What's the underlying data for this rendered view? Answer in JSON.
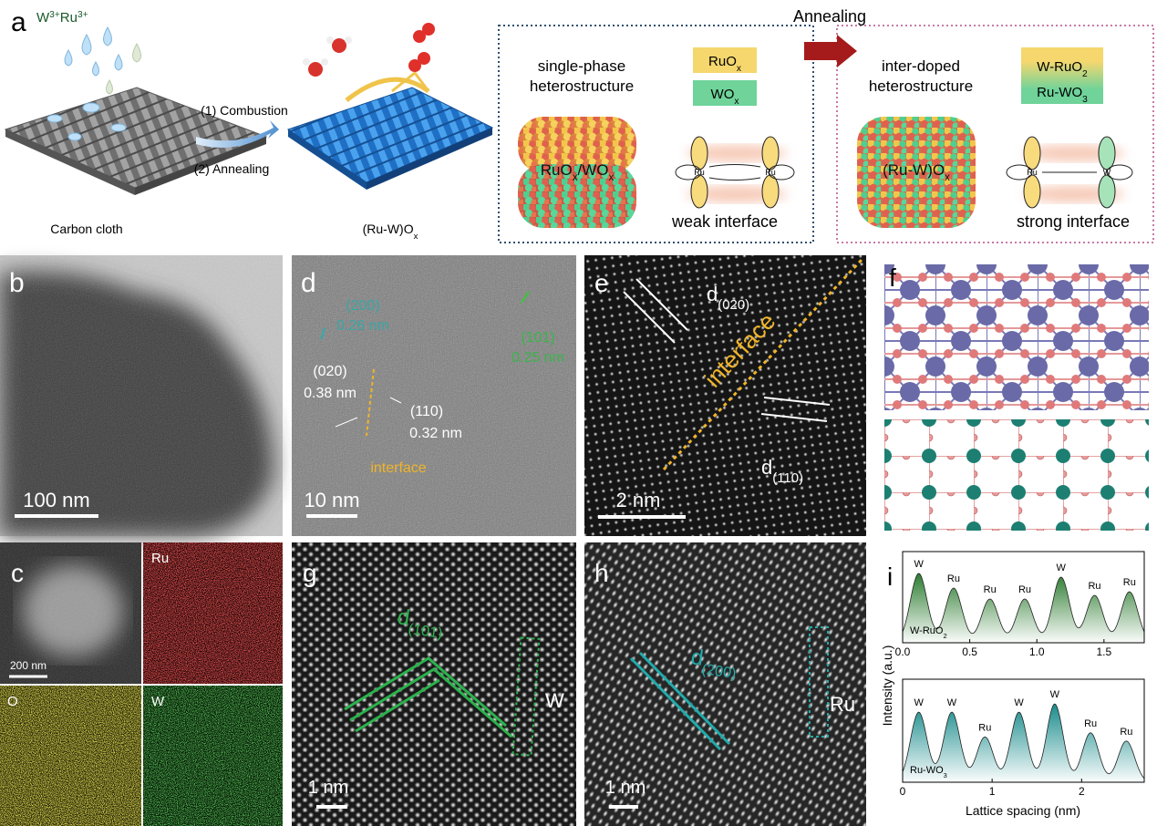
{
  "panel_a": {
    "label": "a",
    "ions": [
      {
        "text": "W"
      },
      {
        "sup": "3+"
      },
      {
        "text": "Ru"
      },
      {
        "sup": "3+"
      }
    ],
    "step1": "(1) Combustion",
    "step2": "(2) Annealing",
    "substrate": "Carbon cloth",
    "product": [
      {
        "text": "(Ru-W)O"
      },
      {
        "sub": "x"
      }
    ],
    "annealing": "Annealing",
    "left_box": {
      "title": [
        "single-phase",
        "heterostructure"
      ],
      "legend": [
        [
          {
            "text": "RuO"
          },
          {
            "sub": "x"
          }
        ],
        [
          {
            "text": "WO"
          },
          {
            "sub": "x"
          }
        ]
      ],
      "particle": [
        {
          "text": "RuO"
        },
        {
          "sub": "x"
        },
        {
          "text": "/WO"
        },
        {
          "sub": "x"
        }
      ],
      "orbitals": [
        "Ru",
        "Ru"
      ],
      "interface": "weak interface"
    },
    "right_box": {
      "title": [
        "inter-doped",
        "heterostructure"
      ],
      "legend": [
        [
          {
            "text": "W-RuO"
          },
          {
            "sub": "2"
          }
        ],
        [
          {
            "text": "Ru-WO"
          },
          {
            "sub": "3"
          }
        ]
      ],
      "particle": [
        {
          "text": "(Ru-W)O"
        },
        {
          "sub": "x"
        }
      ],
      "orbitals": [
        "Ru",
        "W"
      ],
      "interface": "strong interface"
    }
  },
  "panel_b": {
    "label": "b",
    "scale": "100 nm"
  },
  "panel_c": {
    "label": "c",
    "scale": "200 nm",
    "maps": [
      "Ru",
      "O",
      "W"
    ]
  },
  "panel_d": {
    "label": "d",
    "planes": [
      {
        "hkl": "(200)",
        "d": "0.26 nm"
      },
      {
        "hkl": "(101)",
        "d": "0.25 nm"
      },
      {
        "hkl": "(020)",
        "d": "0.38 nm"
      },
      {
        "hkl": "(110)",
        "d": "0.32 nm"
      }
    ],
    "interface": "interface",
    "scale": "10 nm"
  },
  "panel_e": {
    "label": "e",
    "spacing1": [
      {
        "text": "d"
      },
      {
        "sub": "(020)"
      }
    ],
    "interface": "interface",
    "spacing2": [
      {
        "text": "d"
      },
      {
        "sub": "(110)"
      }
    ],
    "scale": "2 nm"
  },
  "panel_f": {
    "label": "f"
  },
  "panel_g": {
    "label": "g",
    "spacing": [
      {
        "text": "d"
      },
      {
        "sub": "(101)"
      }
    ],
    "column": "W",
    "scale": "1 nm"
  },
  "panel_h": {
    "label": "h",
    "spacing": [
      {
        "text": "d"
      },
      {
        "sub": "(200)"
      }
    ],
    "column": "Ru",
    "scale": "1 nm"
  },
  "panel_i": {
    "label": "i",
    "ylabel": "Intensity (a.u.)",
    "xlabel": "Lattice spacing (nm)"
  },
  "chart_data": [
    {
      "type": "line",
      "sample": [
        {
          "text": "W-RuO"
        },
        {
          "sub": "2"
        }
      ],
      "color": "#2e7d32",
      "x": [
        0.12,
        0.38,
        0.65,
        0.91,
        1.18,
        1.43,
        1.69
      ],
      "values": [
        0.95,
        0.75,
        0.6,
        0.6,
        0.9,
        0.65,
        0.7
      ],
      "peak_labels": [
        "W",
        "Ru",
        "Ru",
        "Ru",
        "W",
        "Ru",
        "Ru"
      ],
      "xlim": [
        0,
        1.8
      ],
      "xticks": [
        {
          "value": 0,
          "label": "0.0"
        },
        0.5,
        {
          "value": 1,
          "label": "1.0"
        },
        1.5
      ],
      "ylim": [
        0,
        1.25
      ]
    },
    {
      "type": "line",
      "sample": [
        {
          "text": "Ru-WO"
        },
        {
          "sub": "3"
        }
      ],
      "color": "#1b8c8c",
      "x": [
        0.18,
        0.55,
        0.92,
        1.3,
        1.7,
        2.1,
        2.5
      ],
      "values": [
        0.85,
        0.85,
        0.55,
        0.85,
        0.95,
        0.6,
        0.5
      ],
      "peak_labels": [
        "W",
        "W",
        "Ru",
        "W",
        "W",
        "Ru",
        "Ru"
      ],
      "xlim": [
        0,
        2.7
      ],
      "xticks": [
        0,
        1,
        2
      ],
      "ylim": [
        0,
        1.25
      ]
    }
  ]
}
